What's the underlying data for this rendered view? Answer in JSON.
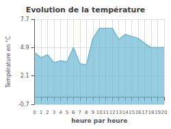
{
  "chart_data": {
    "type": "area",
    "title": "Evolution de la température",
    "xlabel": "heure par heure",
    "ylabel": "Température en °C",
    "x": [
      0,
      1,
      2,
      3,
      4,
      5,
      6,
      7,
      8,
      9,
      10,
      11,
      12,
      13,
      14,
      15,
      16,
      17,
      18,
      19,
      20
    ],
    "values": [
      4.4,
      3.9,
      4.2,
      3.4,
      3.6,
      3.5,
      4.9,
      3.3,
      3.2,
      5.8,
      6.8,
      6.8,
      6.8,
      5.7,
      6.2,
      6.0,
      5.8,
      5.3,
      4.9,
      4.9,
      4.9
    ],
    "color": "#6ab8d4",
    "xlim": [
      0,
      20
    ],
    "xticks": [
      0,
      1,
      2,
      3,
      4,
      5,
      6,
      7,
      8,
      9,
      10,
      11,
      12,
      13,
      14,
      15,
      16,
      17,
      18,
      19,
      20
    ],
    "ylim": [
      -0.7,
      7.7
    ],
    "yticks": [
      -0.7,
      2.1,
      4.9,
      7.7
    ],
    "grid": true
  }
}
